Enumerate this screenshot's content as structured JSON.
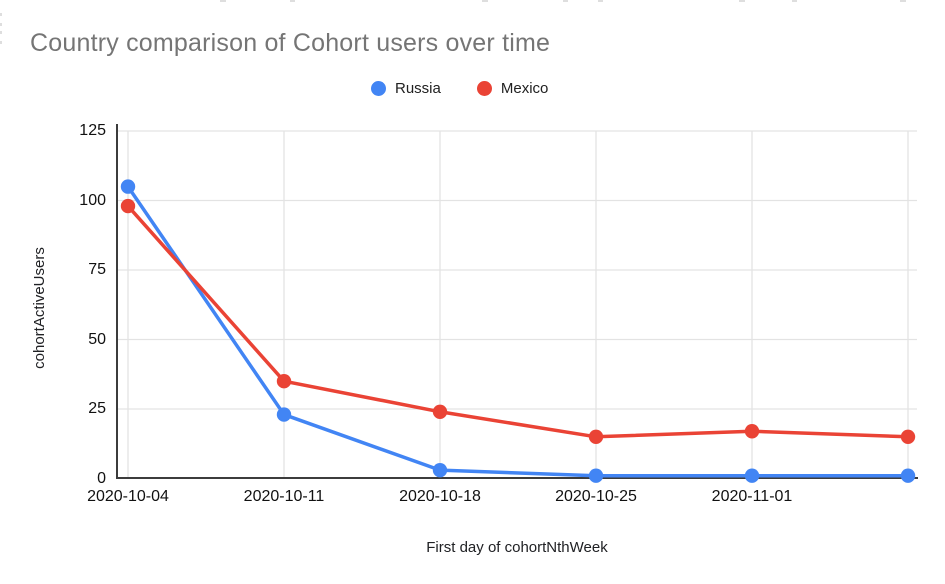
{
  "page": {
    "title": "Country comparison of Cohort users over time"
  },
  "chart_data": {
    "type": "line",
    "title": "Country comparison of Cohort users over time",
    "xlabel": "First day of cohortNthWeek",
    "ylabel": "cohortActiveUsers",
    "categories": [
      "2020-10-04",
      "2020-10-11",
      "2020-10-18",
      "2020-10-25",
      "2020-11-01",
      ""
    ],
    "series": [
      {
        "name": "Russia",
        "color": "#4285F4",
        "values": [
          105,
          23,
          3,
          1,
          1,
          1
        ]
      },
      {
        "name": "Mexico",
        "color": "#EA4335",
        "values": [
          98,
          35,
          24,
          15,
          17,
          15
        ]
      }
    ],
    "ylim": [
      0,
      125
    ],
    "yticks": [
      0,
      25,
      50,
      75,
      100,
      125
    ],
    "grid": true,
    "legend_position": "top-center",
    "marker": "circle"
  },
  "colors": {
    "gridline": "#e3e3e3",
    "axis": "#3c3c3c",
    "title_text": "#757575",
    "tick_text": "#111111",
    "axis_title_text": "#202124"
  }
}
